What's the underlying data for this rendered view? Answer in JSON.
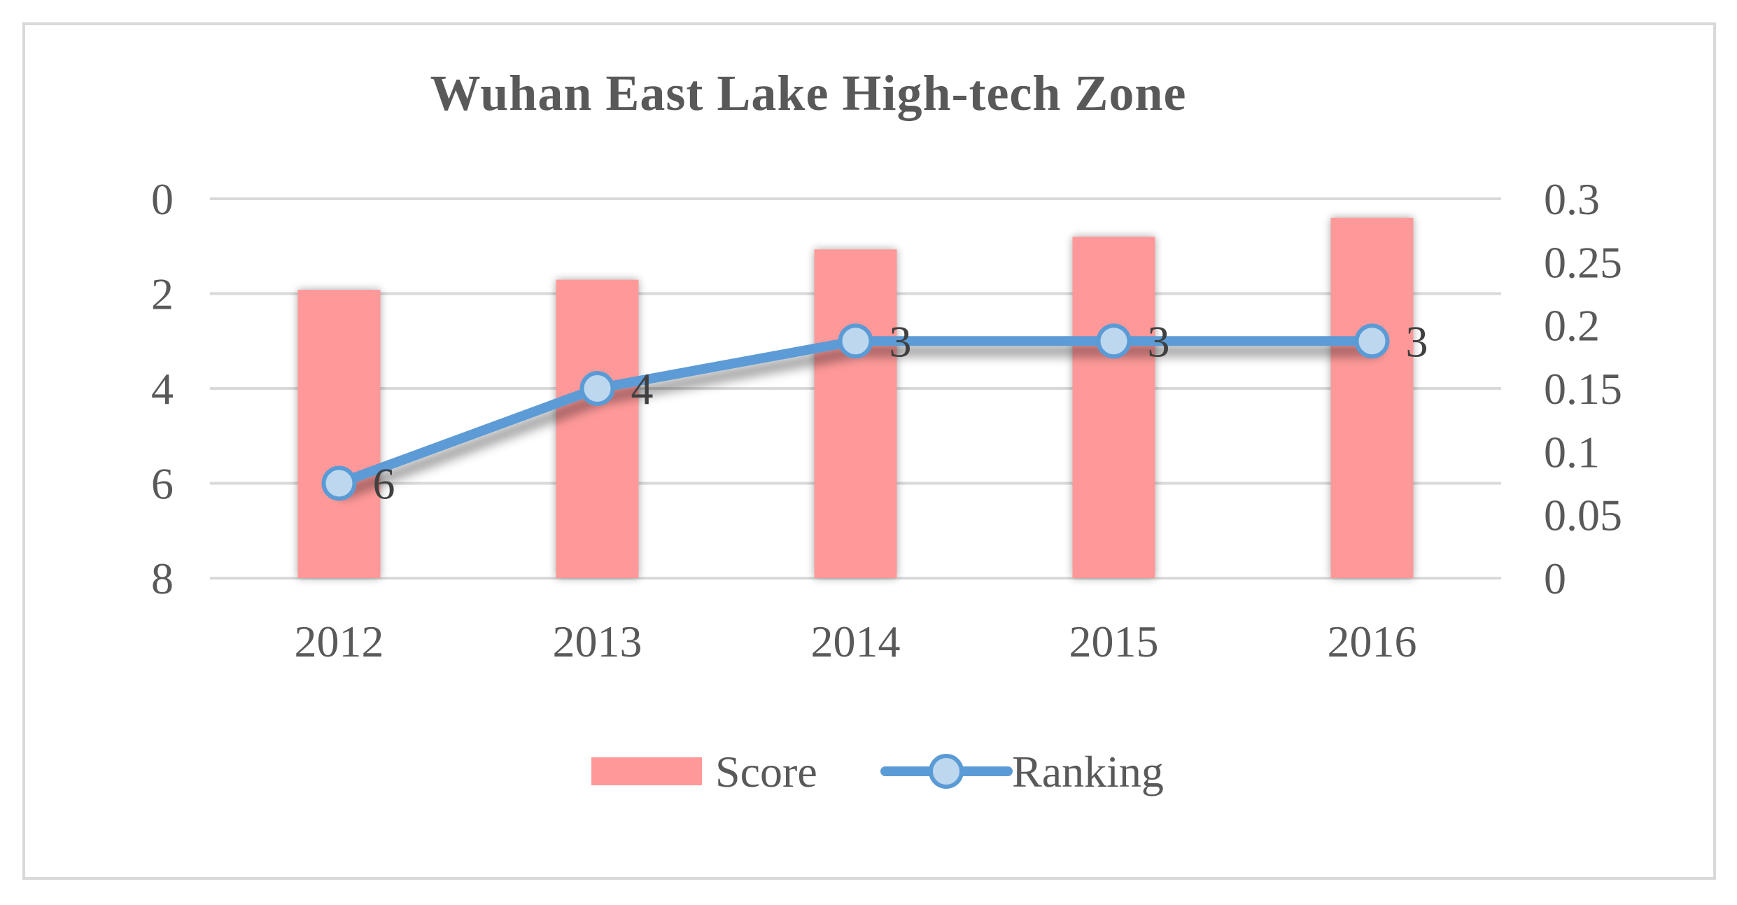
{
  "chart_data": {
    "type": "bar",
    "title": "Wuhan East Lake High-tech Zone",
    "categories": [
      "2012",
      "2013",
      "2014",
      "2015",
      "2016"
    ],
    "series": [
      {
        "name": "Score",
        "type": "bar",
        "axis": "right",
        "color": "#ff9999",
        "values": [
          0.228,
          0.236,
          0.26,
          0.27,
          0.285
        ]
      },
      {
        "name": "Ranking",
        "type": "line",
        "axis": "left",
        "color": "#5b9bd5",
        "marker_fill": "#bdd7ee",
        "values": [
          6,
          4,
          3,
          3,
          3
        ],
        "data_labels": [
          "6",
          "4",
          "3",
          "3",
          "3"
        ]
      }
    ],
    "left_axis": {
      "reversed": true,
      "ylim": [
        0,
        8
      ],
      "ticks": [
        "0",
        "2",
        "4",
        "6",
        "8"
      ],
      "tick_values": [
        0,
        2,
        4,
        6,
        8
      ]
    },
    "right_axis": {
      "ylim": [
        0,
        0.3
      ],
      "ticks": [
        "0.3",
        "0.25",
        "0.2",
        "0.15",
        "0.1",
        "0.05",
        "0"
      ],
      "tick_values": [
        0.3,
        0.25,
        0.2,
        0.15,
        0.1,
        0.05,
        0
      ]
    },
    "grid": true,
    "legend_position": "bottom"
  }
}
